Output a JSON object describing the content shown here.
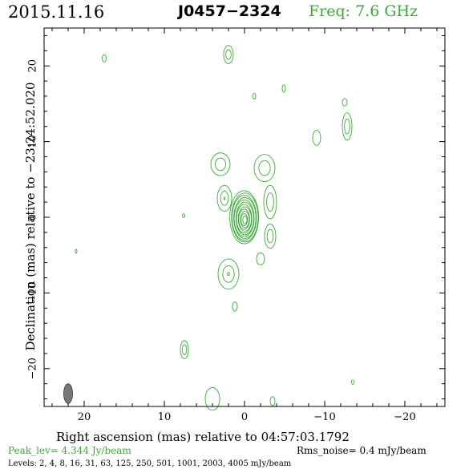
{
  "header": {
    "date": "2015.11.16",
    "source": "J0457−2324",
    "freq": "Freq: 7.6 GHz"
  },
  "axes": {
    "xlabel": "Right ascension (mas) relative to 04:57:03.1792",
    "ylabel": "Declination (mas) relative to −23:24:52.020",
    "xlim": [
      25,
      -25
    ],
    "ylim": [
      -25,
      25
    ],
    "xticks": [
      20,
      10,
      0,
      -10,
      -20
    ],
    "xtick_labels": [
      "20",
      "10",
      "0",
      "−10",
      "−20"
    ],
    "yticks": [
      20,
      10,
      0,
      -10,
      -20
    ],
    "ytick_labels": [
      "20",
      "10",
      "0",
      "−10",
      "−20"
    ]
  },
  "footer": {
    "peak": "Peak_lev=  4.344 Jy/beam",
    "rms": "Rms_noise=  0.4 mJy/beam",
    "levels": "Levels:  2,  4,  8,  16,  31,  63,  125,  250,  501,  1001,  2003,  4005 mJy/beam"
  },
  "colors": {
    "contour": "#3aaa35",
    "beam": "#777777"
  },
  "chart_data": {
    "type": "contour",
    "core": {
      "x": 0,
      "y": 0,
      "levels": 12
    },
    "components": [
      {
        "x": 3,
        "y": 7,
        "rx": 1.2,
        "ry": 1.5,
        "n": 2
      },
      {
        "x": -2.5,
        "y": 6.5,
        "rx": 1.3,
        "ry": 1.8,
        "n": 2
      },
      {
        "x": 2.5,
        "y": 2.5,
        "rx": 0.9,
        "ry": 1.7,
        "n": 3
      },
      {
        "x": -3.2,
        "y": 2,
        "rx": 0.8,
        "ry": 2.2,
        "n": 2
      },
      {
        "x": 2,
        "y": -7.5,
        "rx": 1.3,
        "ry": 2.0,
        "n": 3
      },
      {
        "x": -3.2,
        "y": -2.5,
        "rx": 0.7,
        "ry": 1.6,
        "n": 2
      },
      {
        "x": -2,
        "y": -5.5,
        "rx": 0.5,
        "ry": 0.8,
        "n": 1
      },
      {
        "x": 2,
        "y": 21.5,
        "rx": 0.6,
        "ry": 1.2,
        "n": 2
      },
      {
        "x": 17.5,
        "y": 21,
        "rx": 0.25,
        "ry": 0.5,
        "n": 1
      },
      {
        "x": -1.2,
        "y": 16,
        "rx": 0.2,
        "ry": 0.4,
        "n": 1
      },
      {
        "x": -4.9,
        "y": 17,
        "rx": 0.2,
        "ry": 0.5,
        "n": 1
      },
      {
        "x": -12.5,
        "y": 15.2,
        "rx": 0.3,
        "ry": 0.5,
        "n": 1
      },
      {
        "x": -12.8,
        "y": 12,
        "rx": 0.6,
        "ry": 1.8,
        "n": 2
      },
      {
        "x": -9,
        "y": 10.5,
        "rx": 0.5,
        "ry": 1.0,
        "n": 1
      },
      {
        "x": 7.6,
        "y": 0.2,
        "rx": 0.15,
        "ry": 0.25,
        "n": 1
      },
      {
        "x": 21,
        "y": -4.5,
        "rx": 0.1,
        "ry": 0.25,
        "n": 1
      },
      {
        "x": 1.2,
        "y": -11.8,
        "rx": 0.3,
        "ry": 0.6,
        "n": 1
      },
      {
        "x": 7.5,
        "y": -17.5,
        "rx": 0.5,
        "ry": 1.2,
        "n": 2
      },
      {
        "x": 4,
        "y": -24,
        "rx": 0.9,
        "ry": 1.5,
        "n": 1
      },
      {
        "x": -3.5,
        "y": -24.3,
        "rx": 0.3,
        "ry": 0.6,
        "n": 1
      },
      {
        "x": -13.5,
        "y": -21.8,
        "rx": 0.15,
        "ry": 0.3,
        "n": 1
      }
    ],
    "beam": {
      "x": 22,
      "y": -23.3,
      "rx": 0.55,
      "ry": 1.3
    }
  }
}
